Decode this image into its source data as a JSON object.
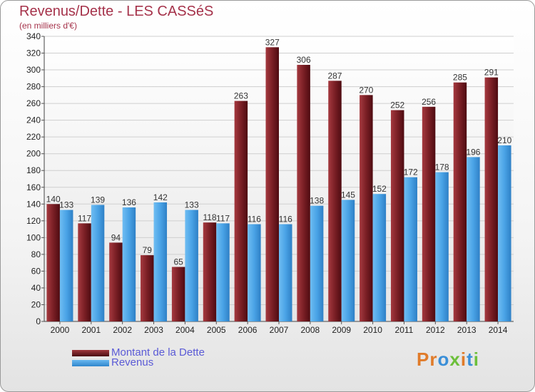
{
  "chart_data": {
    "type": "bar",
    "title": "Revenus/Dette - LES CASSéS",
    "subtitle": "(en milliers d'€)",
    "categories": [
      "2000",
      "2001",
      "2002",
      "2003",
      "2004",
      "2005",
      "2006",
      "2007",
      "2008",
      "2009",
      "2010",
      "2011",
      "2012",
      "2013",
      "2014"
    ],
    "series": [
      {
        "name": "Montant de la Dette",
        "color": "#7a1f25",
        "values": [
          140,
          117,
          94,
          79,
          65,
          118,
          263,
          327,
          306,
          287,
          270,
          252,
          256,
          285,
          291
        ]
      },
      {
        "name": "Revenus",
        "color": "#4aa3e6",
        "values": [
          133,
          139,
          136,
          142,
          133,
          117,
          116,
          116,
          138,
          145,
          152,
          172,
          178,
          196,
          210
        ]
      }
    ],
    "ylim": [
      0,
      340
    ],
    "ytick_step": 20,
    "grid": true,
    "legend_position": "bottom-left"
  },
  "brand": {
    "text": "Proxiti",
    "colors": [
      "#e07b2a",
      "#e07b2a",
      "#3a8fd8",
      "#6cbf3a",
      "#e07b2a",
      "#3a8fd8",
      "#6cbf3a"
    ]
  }
}
